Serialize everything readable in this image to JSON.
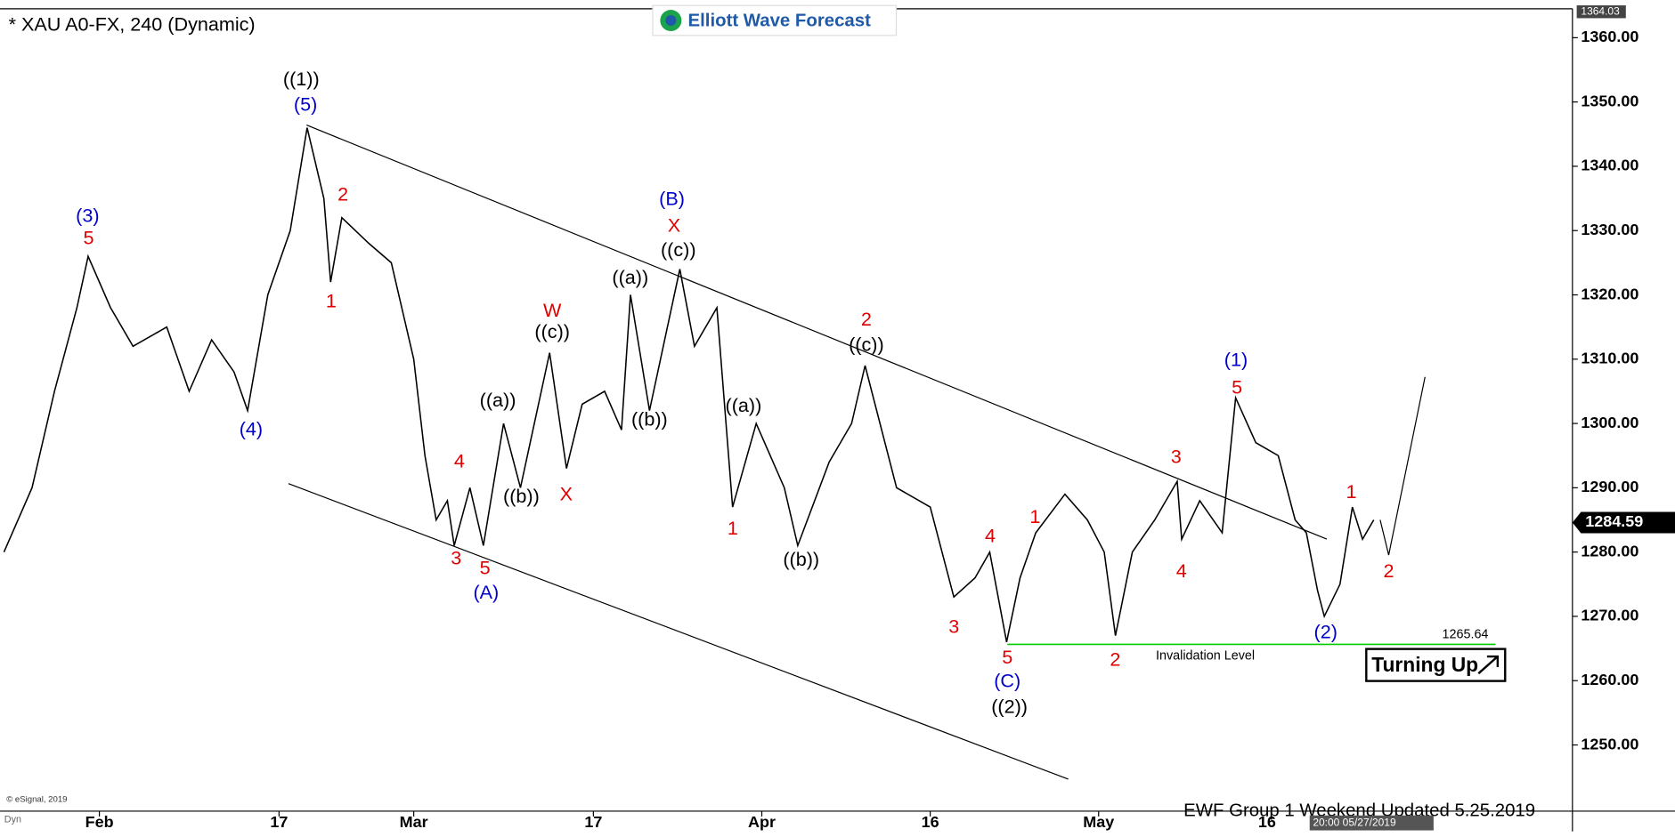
{
  "chart_data": {
    "type": "line",
    "title": "* XAU A0-FX, 240 (Dynamic)",
    "brand": "Elliott Wave Forecast",
    "copyright": "© eSignal, 2019",
    "footer": "EWF Group 1  Weekend  Updated 5.25.2019",
    "timestamp": "20:00 05/27/2019",
    "corner_label": "Dyn",
    "badge": "Turning Up",
    "color": "#000000",
    "x": [
      23.5,
      26,
      28,
      30,
      31,
      33,
      35,
      38,
      40,
      42,
      44,
      45.2,
      47,
      49,
      50.5,
      52,
      52.6,
      53.6,
      56,
      58,
      60,
      61,
      62,
      63,
      63.6,
      65,
      66.2,
      68,
      69.5,
      72.1,
      73.6,
      75,
      77,
      78.5,
      79.3,
      81,
      83.7,
      85,
      87,
      88.4,
      90.5,
      93,
      94.2,
      97,
      99,
      100.2,
      103,
      106,
      108.1,
      110,
      111.3,
      112.8,
      114,
      115.4,
      118,
      120,
      121.5,
      122.5,
      124,
      126,
      128,
      128.4,
      130,
      132,
      133.2,
      135,
      137,
      138.5,
      139.5,
      140.5,
      141.1,
      142.5,
      143.6,
      144.5,
      145.5
    ],
    "values": [
      1280,
      1290,
      1305,
      1318,
      1326,
      1318,
      1312,
      1315,
      1305,
      1313,
      1308,
      1302,
      1320,
      1330,
      1346,
      1335,
      1322,
      1332,
      1328,
      1325,
      1310,
      1295,
      1285,
      1288,
      1281,
      1290,
      1281,
      1300,
      1290,
      1311,
      1293,
      1303,
      1305,
      1299,
      1320,
      1302,
      1324,
      1312,
      1318,
      1287,
      1300,
      1290,
      1281,
      1294,
      1300,
      1309,
      1290,
      1287,
      1273,
      1276,
      1280,
      1266,
      1276,
      1283,
      1289,
      1285,
      1280,
      1267,
      1280,
      1285,
      1291,
      1282,
      1288,
      1283,
      1304,
      1297,
      1295,
      1285,
      1283,
      1274,
      1270,
      1275,
      1287,
      1282,
      1285
    ],
    "xlim": [
      23.15,
      163.2
    ],
    "ylim": [
      1239.7,
      1364.5
    ],
    "xticks": [
      {
        "value": 32,
        "label": "Feb"
      },
      {
        "value": 48,
        "label": "17"
      },
      {
        "value": 60,
        "label": "Mar"
      },
      {
        "value": 76,
        "label": "17"
      },
      {
        "value": 91,
        "label": "Apr"
      },
      {
        "value": 106,
        "label": "16"
      },
      {
        "value": 121,
        "label": "May"
      },
      {
        "value": 136,
        "label": "16"
      }
    ],
    "yticks": [
      {
        "value": 1250,
        "label": "1250.00"
      },
      {
        "value": 1260,
        "label": "1260.00"
      },
      {
        "value": 1270,
        "label": "1270.00"
      },
      {
        "value": 1280,
        "label": "1280.00"
      },
      {
        "value": 1290,
        "label": "1290.00"
      },
      {
        "value": 1300,
        "label": "1300.00"
      },
      {
        "value": 1310,
        "label": "1310.00"
      },
      {
        "value": 1320,
        "label": "1320.00"
      },
      {
        "value": 1330,
        "label": "1330.00"
      },
      {
        "value": 1340,
        "label": "1340.00"
      },
      {
        "value": 1350,
        "label": "1350.00"
      },
      {
        "value": 1360,
        "label": "1360.00"
      }
    ],
    "high_marker": {
      "value": 1364.03,
      "label": "1364.03"
    },
    "last_price": {
      "value": 1284.59,
      "label": "1284.59"
    },
    "invalidation": {
      "value": 1265.64,
      "label": "1265.64",
      "text": "Invalidation Level",
      "color": "#00cc00"
    },
    "wave_labels": [
      {
        "text": "((1))",
        "color": "#000000"
      },
      {
        "text": "(5)",
        "color": "#0000cc"
      },
      {
        "text": "(3)",
        "color": "#0000cc"
      },
      {
        "text": "5",
        "color": "#e00000"
      },
      {
        "text": "(4)",
        "color": "#0000cc"
      },
      {
        "text": "2",
        "color": "#e00000"
      },
      {
        "text": "1",
        "color": "#e00000"
      },
      {
        "text": "(B)",
        "color": "#0000cc"
      },
      {
        "text": "X",
        "color": "#e00000"
      },
      {
        "text": "((c))",
        "color": "#000000"
      },
      {
        "text": "((a))",
        "color": "#000000"
      },
      {
        "text": "W",
        "color": "#e00000"
      },
      {
        "text": "((c))",
        "color": "#000000"
      },
      {
        "text": "((a))",
        "color": "#000000"
      },
      {
        "text": "((b))",
        "color": "#000000"
      },
      {
        "text": "X",
        "color": "#e00000"
      },
      {
        "text": "((b))",
        "color": "#000000"
      },
      {
        "text": "4",
        "color": "#e00000"
      },
      {
        "text": "3",
        "color": "#e00000"
      },
      {
        "text": "5",
        "color": "#e00000"
      },
      {
        "text": "(A)",
        "color": "#0000cc"
      },
      {
        "text": "2",
        "color": "#e00000"
      },
      {
        "text": "((c))",
        "color": "#000000"
      },
      {
        "text": "((a))",
        "color": "#000000"
      },
      {
        "text": "1",
        "color": "#e00000"
      },
      {
        "text": "((b))",
        "color": "#000000"
      },
      {
        "text": "4",
        "color": "#e00000"
      },
      {
        "text": "1",
        "color": "#e00000"
      },
      {
        "text": "3",
        "color": "#e00000"
      },
      {
        "text": "5",
        "color": "#e00000"
      },
      {
        "text": "(C)",
        "color": "#0000cc"
      },
      {
        "text": "((2))",
        "color": "#000000"
      },
      {
        "text": "2",
        "color": "#e00000"
      },
      {
        "text": "3",
        "color": "#e00000"
      },
      {
        "text": "4",
        "color": "#e00000"
      },
      {
        "text": "(1)",
        "color": "#0000cc"
      },
      {
        "text": "5",
        "color": "#e00000"
      },
      {
        "text": "1",
        "color": "#e00000"
      },
      {
        "text": "2",
        "color": "#e00000"
      },
      {
        "text": "(2)",
        "color": "#0000cc"
      }
    ]
  }
}
